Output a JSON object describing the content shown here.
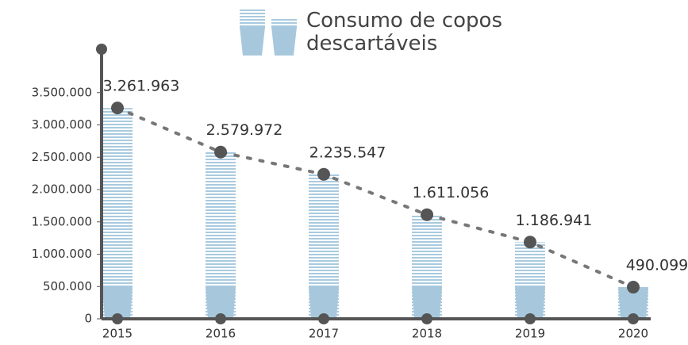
{
  "chart_data": {
    "type": "bar",
    "title": "Consumo de copos descartáveis",
    "categories": [
      "2015",
      "2016",
      "2017",
      "2018",
      "2019",
      "2020"
    ],
    "values": [
      3261963,
      2579972,
      2235547,
      1611056,
      1186941,
      490099
    ],
    "value_labels": [
      "3.261.963",
      "2.579.972",
      "2.235.547",
      "1.611.056",
      "1.186.941",
      "490.099"
    ],
    "color": "#a7c8dc",
    "ylim": [
      0,
      4000000
    ],
    "yticks": [
      0,
      {
        "value": 500000,
        "label": "500.000"
      },
      {
        "value": 1000000,
        "label": "1.000.000"
      },
      {
        "value": 1500000,
        "label": "1.500.000"
      },
      {
        "value": 2000000,
        "label": "2.000.000"
      },
      {
        "value": 2500000,
        "label": "2.500.000"
      },
      {
        "value": 3000000,
        "label": "3.000.000"
      },
      {
        "value": 3500000,
        "label": "3.500.000"
      }
    ]
  }
}
